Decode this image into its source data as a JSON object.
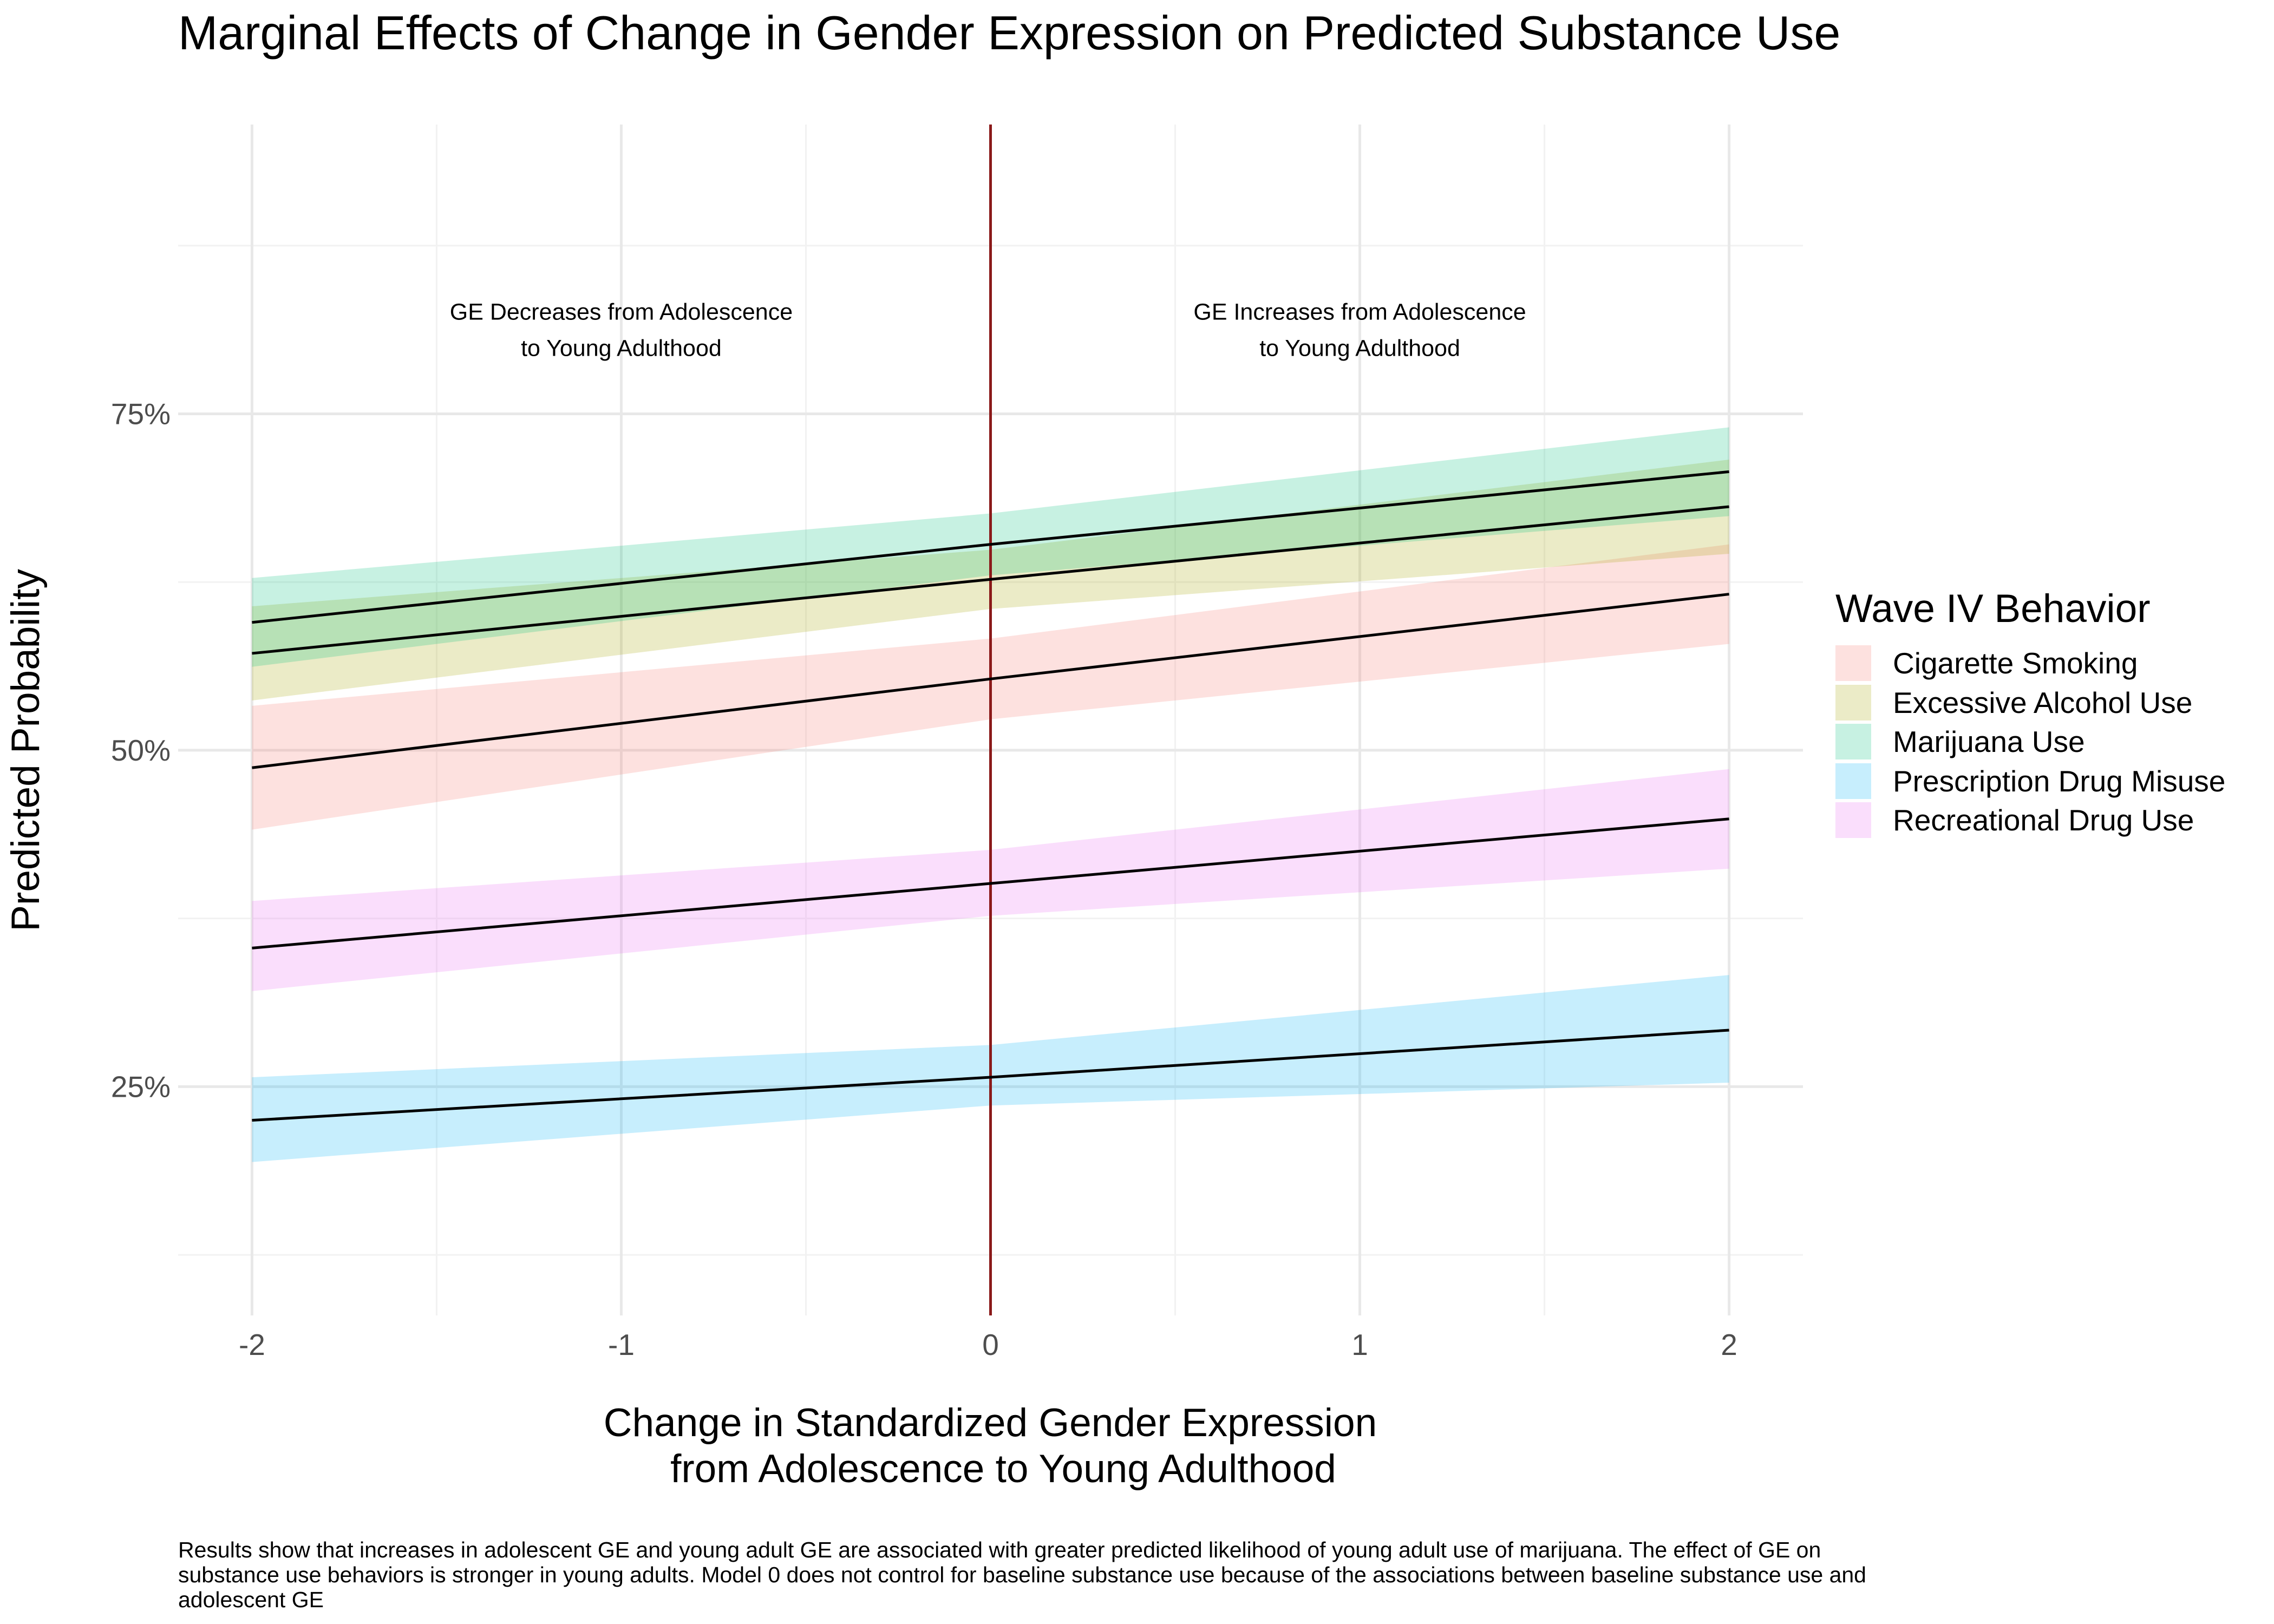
{
  "chart_data": {
    "type": "line",
    "title": "Marginal Effects of Change in Gender Expression on Predicted Substance Use",
    "xlabel": "Change in Standardized Gender Expression\nfrom Adolescence to Young Adulthood",
    "ylabel": "Predicted Probability",
    "xlim": [
      -2.2,
      2.2
    ],
    "ylim": [
      0.08,
      0.965
    ],
    "x_ticks": [
      -2,
      -1,
      0,
      1,
      2
    ],
    "x_tick_labels": [
      "-2",
      "-1",
      "0",
      "1",
      "2"
    ],
    "y_ticks": [
      0.25,
      0.5,
      0.75
    ],
    "y_tick_labels": [
      "25%",
      "50%",
      "75%"
    ],
    "y_minor_ticks": [
      0.125,
      0.375,
      0.625,
      0.875
    ],
    "grid": true,
    "reference_line": {
      "x": 0,
      "color": "#8B1A1A"
    },
    "annotations": [
      {
        "x": -1,
        "y": 0.82,
        "text": "GE Decreases from Adolescence\nto Young Adulthood"
      },
      {
        "x": 1,
        "y": 0.82,
        "text": "GE Increases from Adolescence\nto Young Adulthood"
      }
    ],
    "legend": {
      "title": "Wave IV Behavior",
      "position": "right"
    },
    "series": [
      {
        "name": "Cigarette Smoking",
        "color": "#F8766D",
        "x": [
          -2,
          0,
          2
        ],
        "y": [
          0.487,
          0.553,
          0.616
        ],
        "lower": [
          0.441,
          0.523,
          0.579
        ],
        "upper": [
          0.533,
          0.583,
          0.653
        ]
      },
      {
        "name": "Excessive Alcohol Use",
        "color": "#A3A500",
        "x": [
          -2,
          0,
          2
        ],
        "y": [
          0.572,
          0.627,
          0.681
        ],
        "lower": [
          0.537,
          0.605,
          0.646
        ],
        "upper": [
          0.607,
          0.649,
          0.716
        ]
      },
      {
        "name": "Marijuana Use",
        "color": "#00BF7D",
        "x": [
          -2,
          0,
          2
        ],
        "y": [
          0.595,
          0.653,
          0.707
        ],
        "lower": [
          0.562,
          0.63,
          0.674
        ],
        "upper": [
          0.628,
          0.676,
          0.74
        ]
      },
      {
        "name": "Prescription Drug Misuse",
        "color": "#00B0F6",
        "x": [
          -2,
          0,
          2
        ],
        "y": [
          0.225,
          0.257,
          0.292
        ],
        "lower": [
          0.194,
          0.236,
          0.253
        ],
        "upper": [
          0.257,
          0.281,
          0.333
        ]
      },
      {
        "name": "Recreational Drug Use",
        "color": "#E76BF3",
        "x": [
          -2,
          0,
          2
        ],
        "y": [
          0.353,
          0.401,
          0.449
        ],
        "lower": [
          0.321,
          0.377,
          0.412
        ],
        "upper": [
          0.388,
          0.426,
          0.486
        ]
      }
    ]
  },
  "caption": "Results show that increases in adolescent GE and young adult GE are associated with greater predicted likelihood of young adult use of marijuana. The effect of GE on substance use behaviors is stronger in young adults. Model 0 does not control for baseline substance use because of the associations between baseline substance use and adolescent GE"
}
